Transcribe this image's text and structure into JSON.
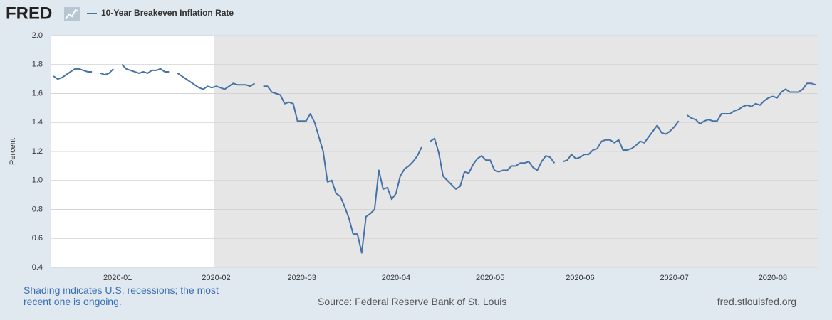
{
  "chart_data": {
    "type": "line",
    "logo": "FRED",
    "y_label": "Percent",
    "note": "Shading indicates U.S. recessions; the most recent one is ongoing.",
    "source": "Source: Federal Reserve Bank of St. Louis",
    "site": "fred.stlouisfed.org",
    "shading": {
      "from": "2020-02",
      "color": "#e6e6e6"
    },
    "grid": true,
    "ylim": [
      0.4,
      2.0
    ],
    "yticks": [
      0.4,
      0.6,
      0.8,
      {
        "value": 1.0,
        "label": "1.0"
      },
      1.2,
      1.4,
      1.6,
      1.8,
      {
        "value": 2.0,
        "label": "2.0"
      }
    ],
    "categories": [
      null,
      null,
      null,
      null,
      null,
      null,
      null,
      null,
      null,
      null,
      null,
      null,
      null,
      null,
      null,
      "2020-01",
      null,
      null,
      null,
      null,
      null,
      null,
      null,
      null,
      null,
      null,
      null,
      null,
      null,
      null,
      null,
      null,
      null,
      null,
      null,
      null,
      null,
      null,
      "2020-02",
      null,
      null,
      null,
      null,
      null,
      null,
      null,
      null,
      null,
      null,
      null,
      null,
      null,
      null,
      null,
      null,
      null,
      null,
      null,
      "2020-03",
      null,
      null,
      null,
      null,
      null,
      null,
      null,
      null,
      null,
      null,
      null,
      null,
      null,
      null,
      null,
      null,
      null,
      null,
      null,
      null,
      null,
      "2020-04",
      null,
      null,
      null,
      null,
      null,
      null,
      null,
      null,
      null,
      null,
      null,
      null,
      null,
      null,
      null,
      null,
      null,
      null,
      null,
      null,
      null,
      "2020-05",
      null,
      null,
      null,
      null,
      null,
      null,
      null,
      null,
      null,
      null,
      null,
      null,
      null,
      null,
      null,
      null,
      null,
      null,
      null,
      null,
      "2020-06",
      null,
      null,
      null,
      null,
      null,
      null,
      null,
      null,
      null,
      null,
      null,
      null,
      null,
      null,
      null,
      null,
      null,
      null,
      null,
      null,
      null,
      "2020-07",
      null,
      null,
      null,
      null,
      null,
      null,
      null,
      null,
      null,
      null,
      null,
      null,
      null,
      null,
      null,
      null,
      null,
      null,
      null,
      null,
      null,
      null,
      "2020-08",
      null,
      null,
      null,
      null,
      null,
      null,
      null,
      null,
      null,
      null
    ],
    "series": [
      {
        "name": "10-Year Breakeven Inflation Rate",
        "color": "#4572a7",
        "values": [
          1.72,
          1.7,
          1.71,
          1.73,
          1.75,
          1.77,
          1.77,
          1.76,
          1.75,
          1.75,
          null,
          1.74,
          1.73,
          1.74,
          1.77,
          null,
          1.8,
          1.77,
          1.76,
          1.75,
          1.74,
          1.75,
          1.74,
          1.76,
          1.76,
          1.77,
          1.75,
          1.75,
          null,
          1.74,
          1.72,
          1.7,
          1.68,
          1.66,
          1.64,
          1.63,
          1.65,
          1.64,
          1.65,
          1.64,
          1.63,
          1.65,
          1.67,
          1.66,
          1.66,
          1.66,
          1.65,
          1.67,
          null,
          1.65,
          1.65,
          1.61,
          1.6,
          1.59,
          1.53,
          1.54,
          1.53,
          1.41,
          1.41,
          1.41,
          1.46,
          1.4,
          1.3,
          1.2,
          0.99,
          1.0,
          0.91,
          0.89,
          0.82,
          0.74,
          0.63,
          0.63,
          0.5,
          0.75,
          0.77,
          0.8,
          1.07,
          0.94,
          0.95,
          0.87,
          0.91,
          1.03,
          1.08,
          1.1,
          1.13,
          1.17,
          1.23,
          null,
          1.27,
          1.29,
          1.19,
          1.03,
          1.0,
          0.97,
          0.94,
          0.96,
          1.06,
          1.05,
          1.11,
          1.15,
          1.17,
          1.14,
          1.14,
          1.07,
          1.06,
          1.07,
          1.07,
          1.1,
          1.1,
          1.12,
          1.12,
          1.13,
          1.09,
          1.07,
          1.13,
          1.17,
          1.16,
          1.12,
          null,
          1.13,
          1.14,
          1.18,
          1.15,
          1.16,
          1.18,
          1.18,
          1.21,
          1.22,
          1.27,
          1.28,
          1.28,
          1.26,
          1.28,
          1.21,
          1.21,
          1.22,
          1.24,
          1.27,
          1.26,
          1.3,
          1.34,
          1.38,
          1.33,
          1.32,
          1.34,
          1.37,
          1.41,
          null,
          1.45,
          1.43,
          1.42,
          1.39,
          1.41,
          1.42,
          1.41,
          1.41,
          1.46,
          1.46,
          1.46,
          1.48,
          1.49,
          1.51,
          1.52,
          1.51,
          1.53,
          1.52,
          1.55,
          1.57,
          1.58,
          1.57,
          1.61,
          1.63,
          1.61,
          1.61,
          1.61,
          1.63,
          1.67,
          1.67,
          1.66
        ]
      }
    ]
  }
}
